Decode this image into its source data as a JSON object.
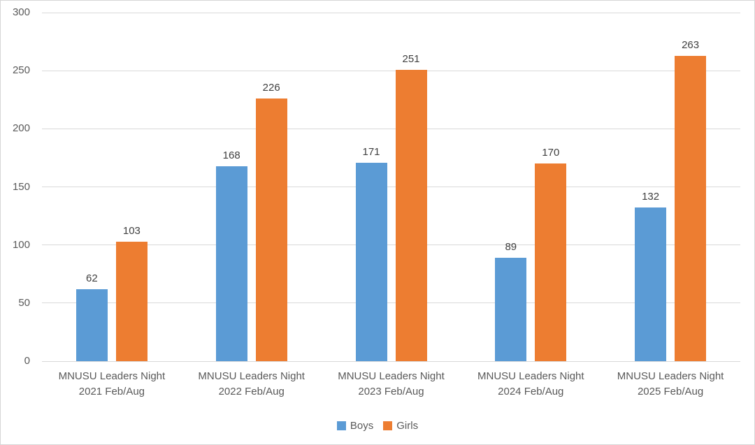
{
  "chart_data": {
    "type": "bar",
    "title": "",
    "xlabel": "",
    "ylabel": "",
    "categories": [
      "MNUSU Leaders Night 2021 Feb/Aug",
      "MNUSU Leaders Night 2022 Feb/Aug",
      "MNUSU Leaders Night 2023 Feb/Aug",
      "MNUSU Leaders Night 2024 Feb/Aug",
      "MNUSU Leaders Night 2025 Feb/Aug"
    ],
    "category_lines": [
      [
        "MNUSU Leaders Night",
        "2021 Feb/Aug"
      ],
      [
        "MNUSU Leaders Night",
        "2022 Feb/Aug"
      ],
      [
        "MNUSU Leaders Night",
        "2023 Feb/Aug"
      ],
      [
        "MNUSU Leaders Night",
        "2024 Feb/Aug"
      ],
      [
        "MNUSU Leaders Night",
        "2025 Feb/Aug"
      ]
    ],
    "series": [
      {
        "name": "Boys",
        "color": "#5B9BD5",
        "values": [
          62,
          168,
          171,
          89,
          132
        ]
      },
      {
        "name": "Girls",
        "color": "#ED7D31",
        "values": [
          103,
          226,
          251,
          170,
          263
        ]
      }
    ],
    "ylim": [
      0,
      300
    ],
    "yticks": [
      0,
      50,
      100,
      150,
      200,
      250,
      300
    ],
    "grid": true,
    "data_labels": true,
    "legend_position": "bottom"
  },
  "colors": {
    "boys": "#5B9BD5",
    "girls": "#ED7D31",
    "gridline": "#D9D9D9",
    "axis_text": "#595959",
    "data_label_text": "#404040",
    "frame_border": "#D6D6D6",
    "background": "#FFFFFF"
  }
}
